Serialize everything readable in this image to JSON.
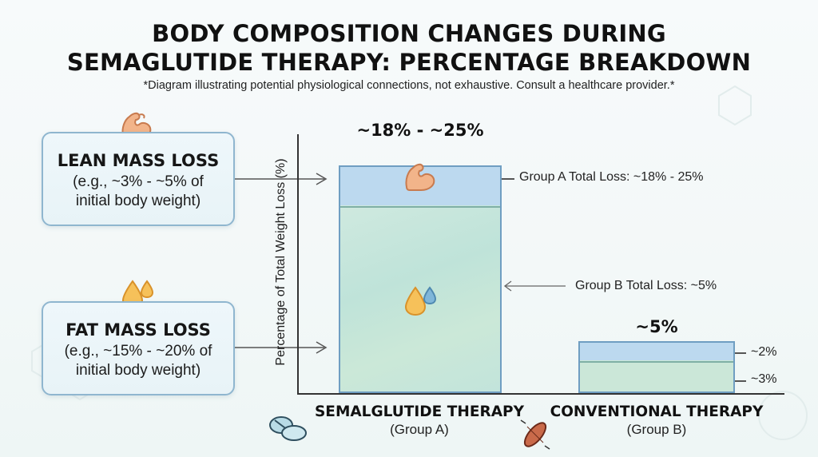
{
  "title_line1": "BODY COMPOSITION CHANGES DURING",
  "title_line2": "SEMAGLUTIDE THERAPY: PERCENTAGE BREAKDOWN",
  "subtitle": "*Diagram illustrating potential physiological connections, not exhaustive. Consult a healthcare provider.*",
  "cards": {
    "lean": {
      "heading": "LEAN MASS LOSS",
      "line1": "(e.g., ~3% - ~5% of",
      "line2": "initial body weight)",
      "icon": "flexed-arm-icon"
    },
    "fat": {
      "heading": "FAT MASS LOSS",
      "line1": "(e.g., ~15% - ~20% of",
      "line2": "initial body weight)",
      "icon": "fat-droplets-icon"
    }
  },
  "colors": {
    "lean_segment": "#bcd9ef",
    "fat_segment": "#c8e7dc",
    "bar_border": "#6f9ec2",
    "card_border": "#8fb6cf"
  },
  "chart_data": {
    "type": "bar",
    "stacked": true,
    "ylabel": "Percentage of Total Weight Loss (%)",
    "xlabel": "",
    "categories": [
      {
        "name": "SEMALGLUTIDE THERAPY",
        "group": "(Group A)"
      },
      {
        "name": "CONVENTIONAL THERAPY",
        "group": "(Group B)"
      }
    ],
    "series": [
      {
        "name": "",
        "values": [
          18,
          3
        ]
      },
      {
        "name": "",
        "values": [
          4,
          2
        ]
      }
    ],
    "top_labels": [
      "~18% - ~25%",
      "~5%"
    ],
    "segment_labels": {
      "groupB_upper": "~2%",
      "groupB_lower": "~3%"
    },
    "annotations": {
      "groupA_total": "Group A Total Loss: ~18% - 25%",
      "groupB_total": "Group  B Total Loss: ~5%"
    },
    "ylim": [
      0,
      25
    ],
    "grid": false
  }
}
